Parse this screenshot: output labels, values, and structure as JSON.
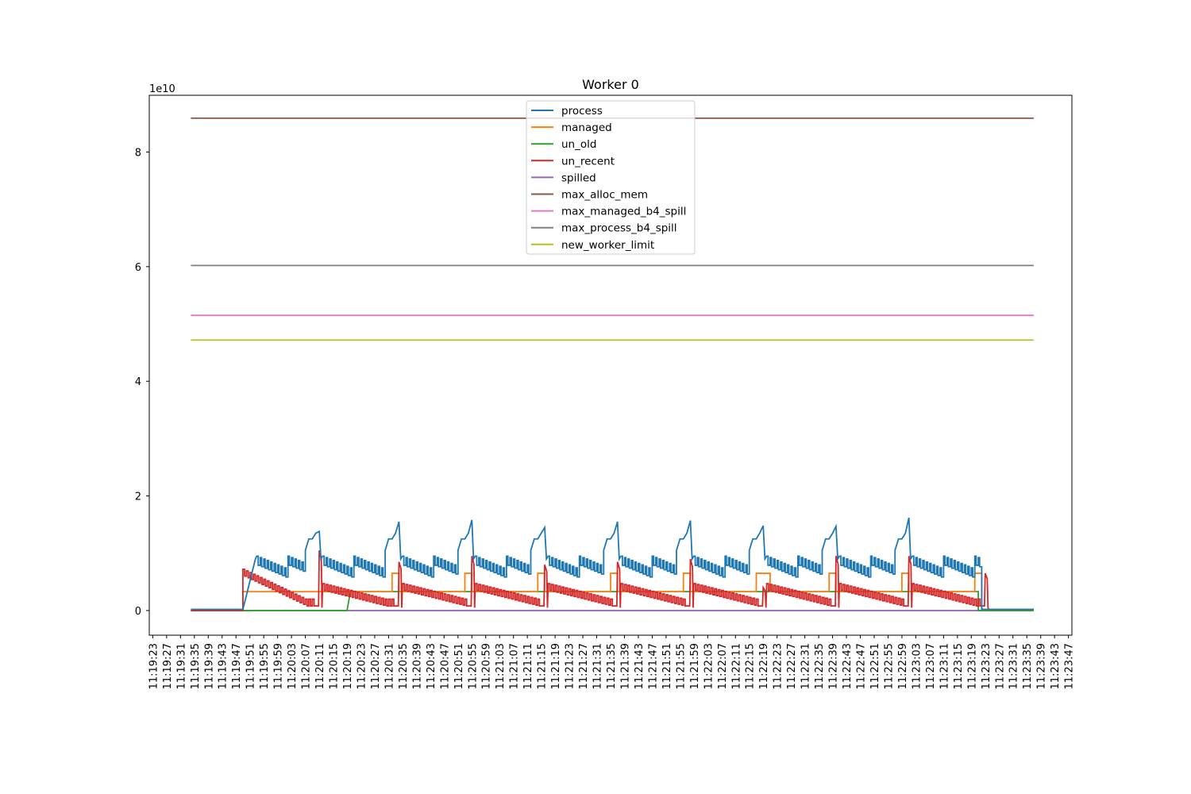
{
  "chart_data": {
    "type": "line",
    "title": "Worker 0",
    "xlabel": "",
    "ylabel": "",
    "y_offset_label": "1e10",
    "y_scale": 10000000000,
    "ylim": [
      -0.43,
      8.99
    ],
    "yticks": [
      0,
      2,
      4,
      6,
      8
    ],
    "xlim": [
      "11:19:22",
      "11:23:48"
    ],
    "x_tick_labels": [
      "11:19:23",
      "11:19:27",
      "11:19:31",
      "11:19:35",
      "11:19:39",
      "11:19:43",
      "11:19:47",
      "11:19:51",
      "11:19:55",
      "11:19:59",
      "11:20:03",
      "11:20:07",
      "11:20:11",
      "11:20:15",
      "11:20:19",
      "11:20:23",
      "11:20:27",
      "11:20:31",
      "11:20:35",
      "11:20:39",
      "11:20:43",
      "11:20:47",
      "11:20:51",
      "11:20:55",
      "11:20:59",
      "11:21:03",
      "11:21:07",
      "11:21:11",
      "11:21:15",
      "11:21:19",
      "11:21:23",
      "11:21:27",
      "11:21:31",
      "11:21:35",
      "11:21:39",
      "11:21:43",
      "11:21:47",
      "11:21:51",
      "11:21:55",
      "11:21:59",
      "11:22:03",
      "11:22:07",
      "11:22:11",
      "11:22:15",
      "11:22:19",
      "11:22:23",
      "11:22:27",
      "11:22:31",
      "11:22:35",
      "11:22:39",
      "11:22:43",
      "11:22:47",
      "11:22:51",
      "11:22:55",
      "11:22:59",
      "11:23:03",
      "11:23:07",
      "11:23:11",
      "11:23:15",
      "11:23:19",
      "11:23:23",
      "11:23:27",
      "11:23:31",
      "11:23:35",
      "11:23:39",
      "11:23:43",
      "11:23:47"
    ],
    "grid": false,
    "legend": "upper center",
    "x_start": "11:19:34",
    "x_end": "11:23:37",
    "series": [
      {
        "name": "process",
        "color": "#1f77b4",
        "spikes_at": [
          "11:20:11",
          "11:20:34",
          "11:20:55",
          "11:21:16",
          "11:21:37",
          "11:21:58",
          "11:22:19",
          "11:22:40",
          "11:23:01"
        ],
        "spike_peaks": [
          1.38,
          1.55,
          1.58,
          1.45,
          1.55,
          1.57,
          1.48,
          1.47,
          1.62
        ],
        "ramp_start": "11:19:49",
        "active_end": "11:23:22",
        "sawtooth_high": 0.95,
        "sawtooth_low": 0.72
      },
      {
        "name": "managed",
        "color": "#ff7f0e",
        "levels": [
          {
            "from": "11:19:34",
            "to": "11:19:49",
            "value": 0.02
          },
          {
            "from": "11:19:49",
            "to": "11:20:32",
            "value": 0.33
          },
          {
            "from": "11:20:32",
            "to": "11:20:34",
            "value": 0.65
          },
          {
            "from": "11:20:34",
            "to": "11:20:53",
            "value": 0.33
          },
          {
            "from": "11:20:53",
            "to": "11:20:55",
            "value": 0.65
          },
          {
            "from": "11:20:55",
            "to": "11:21:14",
            "value": 0.33
          },
          {
            "from": "11:21:14",
            "to": "11:21:16",
            "value": 0.65
          },
          {
            "from": "11:21:16",
            "to": "11:21:35",
            "value": 0.33
          },
          {
            "from": "11:21:35",
            "to": "11:21:37",
            "value": 0.65
          },
          {
            "from": "11:21:37",
            "to": "11:21:56",
            "value": 0.33
          },
          {
            "from": "11:21:56",
            "to": "11:21:58",
            "value": 0.65
          },
          {
            "from": "11:21:58",
            "to": "11:22:17",
            "value": 0.33
          },
          {
            "from": "11:22:17",
            "to": "11:22:21",
            "value": 0.65
          },
          {
            "from": "11:22:21",
            "to": "11:22:38",
            "value": 0.33
          },
          {
            "from": "11:22:38",
            "to": "11:22:40",
            "value": 0.65
          },
          {
            "from": "11:22:40",
            "to": "11:22:59",
            "value": 0.33
          },
          {
            "from": "11:22:59",
            "to": "11:23:01",
            "value": 0.65
          },
          {
            "from": "11:23:01",
            "to": "11:23:20",
            "value": 0.33
          },
          {
            "from": "11:23:20",
            "to": "11:23:22",
            "value": 0.65
          },
          {
            "from": "11:23:22",
            "to": "11:23:37",
            "value": 0.02
          }
        ]
      },
      {
        "name": "un_old",
        "color": "#2ca02c",
        "levels": [
          {
            "from": "11:19:34",
            "to": "11:20:19",
            "value": 0.0
          },
          {
            "from": "11:20:20",
            "to": "11:23:21",
            "value": 0.33
          },
          {
            "from": "11:23:21",
            "to": "11:23:37",
            "value": 0.0
          }
        ]
      },
      {
        "name": "un_recent",
        "color": "#d62728",
        "spikes_at": [
          "11:20:11",
          "11:20:34",
          "11:20:55",
          "11:21:16",
          "11:21:37",
          "11:21:58",
          "11:22:19",
          "11:22:40",
          "11:23:01",
          "11:23:23"
        ],
        "spike_peaks": [
          1.05,
          0.85,
          0.95,
          0.8,
          0.85,
          0.9,
          0.4,
          0.95,
          0.95,
          0.65
        ],
        "sawtooth_high": 0.6,
        "sawtooth_low": 0.08
      },
      {
        "name": "spilled",
        "color": "#9467bd",
        "value": 0.0
      },
      {
        "name": "max_alloc_mem",
        "color": "#8c564b",
        "value": 8.59
      },
      {
        "name": "max_managed_b4_spill",
        "color": "#e377c2",
        "value": 5.15
      },
      {
        "name": "max_process_b4_spill",
        "color": "#7f7f7f",
        "value": 6.02
      },
      {
        "name": "new_worker_limit",
        "color": "#bcbd22",
        "value": 4.72
      }
    ]
  }
}
